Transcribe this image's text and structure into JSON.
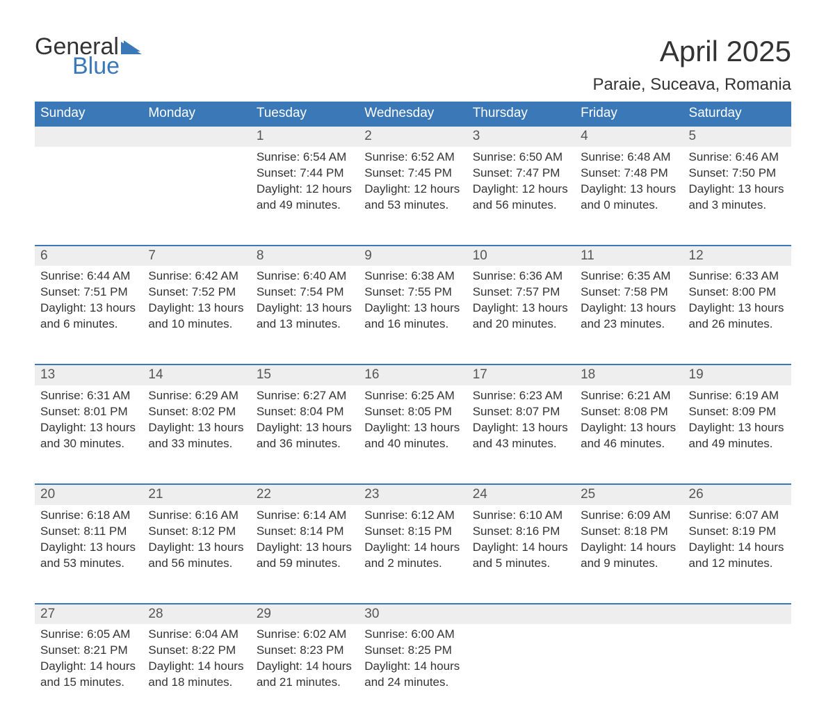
{
  "branding": {
    "text_general": "General",
    "text_blue": "Blue",
    "flag_color": "#3a78b8",
    "text_general_color": "#333333",
    "text_blue_color": "#3a78b8",
    "font_size_pt": 26
  },
  "title": {
    "month_year": "April 2025",
    "location": "Paraie, Suceava, Romania",
    "month_fontsize_pt": 32,
    "location_fontsize_pt": 18,
    "color": "#333333"
  },
  "calendar": {
    "type": "table",
    "header_bg": "#3a78b8",
    "header_fg": "#ffffff",
    "daynum_bg": "#eeeeee",
    "daynum_border_top": "#3a78b8",
    "cell_fg": "#333333",
    "body_fontsize_pt": 13,
    "header_fontsize_pt": 14,
    "columns": [
      "Sunday",
      "Monday",
      "Tuesday",
      "Wednesday",
      "Thursday",
      "Friday",
      "Saturday"
    ],
    "weeks": [
      [
        {
          "num": "",
          "lines": []
        },
        {
          "num": "",
          "lines": []
        },
        {
          "num": "1",
          "lines": [
            "Sunrise: 6:54 AM",
            "Sunset: 7:44 PM",
            "Daylight: 12 hours and 49 minutes."
          ]
        },
        {
          "num": "2",
          "lines": [
            "Sunrise: 6:52 AM",
            "Sunset: 7:45 PM",
            "Daylight: 12 hours and 53 minutes."
          ]
        },
        {
          "num": "3",
          "lines": [
            "Sunrise: 6:50 AM",
            "Sunset: 7:47 PM",
            "Daylight: 12 hours and 56 minutes."
          ]
        },
        {
          "num": "4",
          "lines": [
            "Sunrise: 6:48 AM",
            "Sunset: 7:48 PM",
            "Daylight: 13 hours and 0 minutes."
          ]
        },
        {
          "num": "5",
          "lines": [
            "Sunrise: 6:46 AM",
            "Sunset: 7:50 PM",
            "Daylight: 13 hours and 3 minutes."
          ]
        }
      ],
      [
        {
          "num": "6",
          "lines": [
            "Sunrise: 6:44 AM",
            "Sunset: 7:51 PM",
            "Daylight: 13 hours and 6 minutes."
          ]
        },
        {
          "num": "7",
          "lines": [
            "Sunrise: 6:42 AM",
            "Sunset: 7:52 PM",
            "Daylight: 13 hours and 10 minutes."
          ]
        },
        {
          "num": "8",
          "lines": [
            "Sunrise: 6:40 AM",
            "Sunset: 7:54 PM",
            "Daylight: 13 hours and 13 minutes."
          ]
        },
        {
          "num": "9",
          "lines": [
            "Sunrise: 6:38 AM",
            "Sunset: 7:55 PM",
            "Daylight: 13 hours and 16 minutes."
          ]
        },
        {
          "num": "10",
          "lines": [
            "Sunrise: 6:36 AM",
            "Sunset: 7:57 PM",
            "Daylight: 13 hours and 20 minutes."
          ]
        },
        {
          "num": "11",
          "lines": [
            "Sunrise: 6:35 AM",
            "Sunset: 7:58 PM",
            "Daylight: 13 hours and 23 minutes."
          ]
        },
        {
          "num": "12",
          "lines": [
            "Sunrise: 6:33 AM",
            "Sunset: 8:00 PM",
            "Daylight: 13 hours and 26 minutes."
          ]
        }
      ],
      [
        {
          "num": "13",
          "lines": [
            "Sunrise: 6:31 AM",
            "Sunset: 8:01 PM",
            "Daylight: 13 hours and 30 minutes."
          ]
        },
        {
          "num": "14",
          "lines": [
            "Sunrise: 6:29 AM",
            "Sunset: 8:02 PM",
            "Daylight: 13 hours and 33 minutes."
          ]
        },
        {
          "num": "15",
          "lines": [
            "Sunrise: 6:27 AM",
            "Sunset: 8:04 PM",
            "Daylight: 13 hours and 36 minutes."
          ]
        },
        {
          "num": "16",
          "lines": [
            "Sunrise: 6:25 AM",
            "Sunset: 8:05 PM",
            "Daylight: 13 hours and 40 minutes."
          ]
        },
        {
          "num": "17",
          "lines": [
            "Sunrise: 6:23 AM",
            "Sunset: 8:07 PM",
            "Daylight: 13 hours and 43 minutes."
          ]
        },
        {
          "num": "18",
          "lines": [
            "Sunrise: 6:21 AM",
            "Sunset: 8:08 PM",
            "Daylight: 13 hours and 46 minutes."
          ]
        },
        {
          "num": "19",
          "lines": [
            "Sunrise: 6:19 AM",
            "Sunset: 8:09 PM",
            "Daylight: 13 hours and 49 minutes."
          ]
        }
      ],
      [
        {
          "num": "20",
          "lines": [
            "Sunrise: 6:18 AM",
            "Sunset: 8:11 PM",
            "Daylight: 13 hours and 53 minutes."
          ]
        },
        {
          "num": "21",
          "lines": [
            "Sunrise: 6:16 AM",
            "Sunset: 8:12 PM",
            "Daylight: 13 hours and 56 minutes."
          ]
        },
        {
          "num": "22",
          "lines": [
            "Sunrise: 6:14 AM",
            "Sunset: 8:14 PM",
            "Daylight: 13 hours and 59 minutes."
          ]
        },
        {
          "num": "23",
          "lines": [
            "Sunrise: 6:12 AM",
            "Sunset: 8:15 PM",
            "Daylight: 14 hours and 2 minutes."
          ]
        },
        {
          "num": "24",
          "lines": [
            "Sunrise: 6:10 AM",
            "Sunset: 8:16 PM",
            "Daylight: 14 hours and 5 minutes."
          ]
        },
        {
          "num": "25",
          "lines": [
            "Sunrise: 6:09 AM",
            "Sunset: 8:18 PM",
            "Daylight: 14 hours and 9 minutes."
          ]
        },
        {
          "num": "26",
          "lines": [
            "Sunrise: 6:07 AM",
            "Sunset: 8:19 PM",
            "Daylight: 14 hours and 12 minutes."
          ]
        }
      ],
      [
        {
          "num": "27",
          "lines": [
            "Sunrise: 6:05 AM",
            "Sunset: 8:21 PM",
            "Daylight: 14 hours and 15 minutes."
          ]
        },
        {
          "num": "28",
          "lines": [
            "Sunrise: 6:04 AM",
            "Sunset: 8:22 PM",
            "Daylight: 14 hours and 18 minutes."
          ]
        },
        {
          "num": "29",
          "lines": [
            "Sunrise: 6:02 AM",
            "Sunset: 8:23 PM",
            "Daylight: 14 hours and 21 minutes."
          ]
        },
        {
          "num": "30",
          "lines": [
            "Sunrise: 6:00 AM",
            "Sunset: 8:25 PM",
            "Daylight: 14 hours and 24 minutes."
          ]
        },
        {
          "num": "",
          "lines": []
        },
        {
          "num": "",
          "lines": []
        },
        {
          "num": "",
          "lines": []
        }
      ]
    ]
  }
}
